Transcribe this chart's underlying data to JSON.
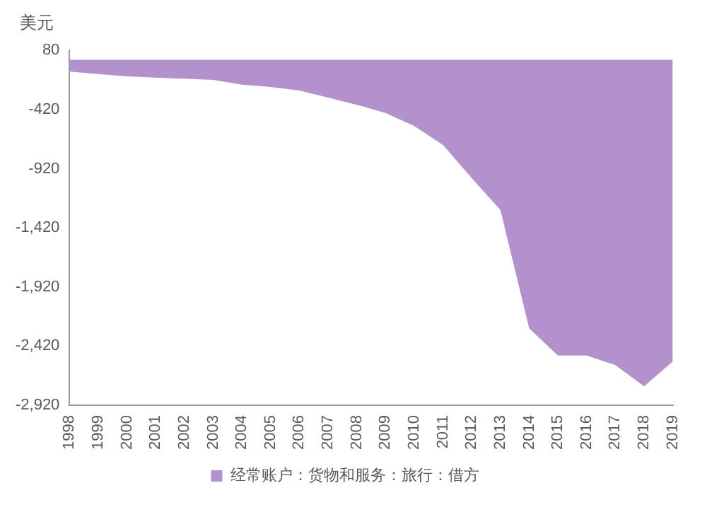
{
  "chart_data": {
    "type": "area",
    "ylabel": "美元",
    "categories": [
      "1998",
      "1999",
      "2000",
      "2001",
      "2002",
      "2003",
      "2004",
      "2005",
      "2006",
      "2007",
      "2008",
      "2009",
      "2010",
      "2011",
      "2012",
      "2013",
      "2014",
      "2015",
      "2016",
      "2017",
      "2018",
      "2019"
    ],
    "series": [
      {
        "name": "经常账户：货物和服务：旅行：借方",
        "color": "#b391cc",
        "values": [
          -100,
          -120,
          -140,
          -150,
          -160,
          -170,
          -210,
          -230,
          -260,
          -320,
          -380,
          -450,
          -560,
          -720,
          -1000,
          -1270,
          -2270,
          -2500,
          -2500,
          -2580,
          -2760,
          -2550
        ]
      }
    ],
    "ylim": [
      -2920,
      80
    ],
    "yticks": [
      80,
      -420,
      -920,
      {
        "value": -1420,
        "label": "-1,420"
      },
      {
        "value": -1920,
        "label": "-1,920"
      },
      {
        "value": -2420,
        "label": "-2,420"
      },
      {
        "value": -2920,
        "label": "-2,920"
      }
    ],
    "grid": false,
    "legend": "bottom"
  }
}
